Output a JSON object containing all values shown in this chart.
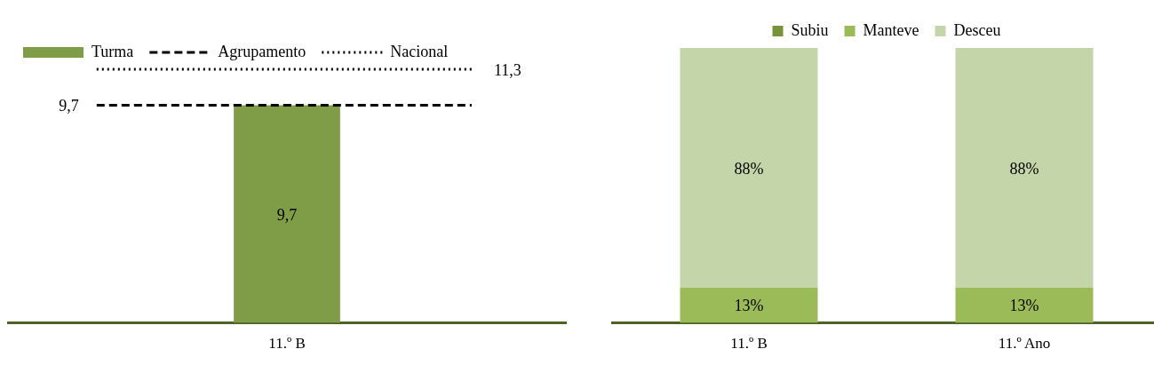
{
  "chart_data": [
    {
      "type": "bar",
      "categories": [
        "11.º B"
      ],
      "series": [
        {
          "name": "Turma",
          "color": "#7f9c47",
          "values": [
            9.7
          ],
          "value_labels": [
            "9,7"
          ]
        }
      ],
      "ref_lines": [
        {
          "axis": "y",
          "value": 9.7,
          "label": "9,7",
          "color": "#000000",
          "line_style": "dashed"
        },
        {
          "axis": "y",
          "value": 11.3,
          "label": "11,3",
          "color": "#000000",
          "line_style": "dotted"
        }
      ],
      "annotations": [
        "Agrupamento",
        "Nacional"
      ],
      "ylim": [
        0,
        11.3
      ],
      "legend": "top left",
      "grid": false,
      "tick_labels": "x"
    },
    {
      "type": "bar",
      "stacked": true,
      "categories": [
        "11.º B",
        "11.º Ano"
      ],
      "series": [
        {
          "name": "Subiu",
          "color": "#77933c",
          "values": [
            0,
            0
          ]
        },
        {
          "name": "Manteve",
          "color": "#9bbb59",
          "values": [
            13,
            13
          ],
          "value_labels": [
            "13%",
            "13%"
          ]
        },
        {
          "name": "Desceu",
          "color": "#c4d6a9",
          "values": [
            88,
            88
          ],
          "value_labels": [
            "88%",
            "88%"
          ]
        }
      ],
      "ylim": [
        0,
        101
      ],
      "legend": "top",
      "grid": false,
      "tick_labels": "x"
    }
  ]
}
